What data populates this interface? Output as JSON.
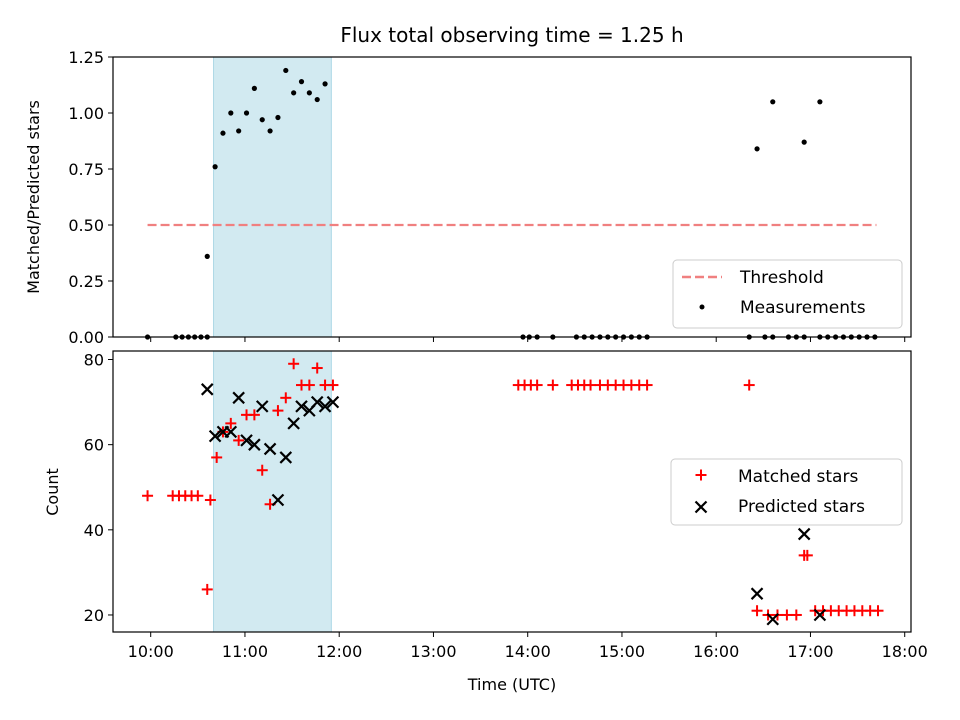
{
  "title": "Flux total observing time = 1.25 h",
  "colors": {
    "threshold": "#f08080",
    "measurement": "#000000",
    "matched": "#ff0000",
    "predicted": "#000000",
    "shade": "#add8e6"
  },
  "chart_data": [
    {
      "type": "scatter",
      "ylabel": "Matched/Predicted stars",
      "xlim": [
        "09:36",
        "18:04"
      ],
      "ylim": [
        0,
        1.25
      ],
      "yticks": [
        "0.00",
        "0.25",
        "0.50",
        "0.75",
        "1.00",
        "1.25"
      ],
      "shaded_interval": [
        "10:40",
        "11:55"
      ],
      "legend_position": "lower right",
      "threshold": {
        "name": "Threshold",
        "value": 0.5,
        "x_start": "09:58",
        "x_end": "17:42"
      },
      "series": [
        {
          "name": "Measurements",
          "x": [
            "09:58",
            "10:16",
            "10:20",
            "10:24",
            "10:28",
            "10:32",
            "10:36",
            "10:36",
            "10:41",
            "10:46",
            "10:51",
            "10:56",
            "11:01",
            "11:06",
            "11:11",
            "11:16",
            "11:21",
            "11:26",
            "11:31",
            "11:36",
            "11:41",
            "11:46",
            "11:51",
            "13:57",
            "14:01",
            "14:06",
            "14:16",
            "14:31",
            "14:36",
            "14:41",
            "14:46",
            "14:51",
            "14:56",
            "15:01",
            "15:06",
            "15:11",
            "15:16",
            "16:21",
            "16:31",
            "16:36",
            "16:46",
            "16:51",
            "16:56",
            "17:06",
            "17:11",
            "17:16",
            "17:21",
            "17:26",
            "17:31",
            "17:36",
            "17:41",
            "16:26",
            "16:36",
            "16:56",
            "17:06"
          ],
          "y": [
            0,
            0,
            0,
            0,
            0,
            0,
            0,
            0.36,
            0.76,
            0.91,
            1.0,
            0.92,
            1.0,
            1.11,
            0.97,
            0.92,
            0.98,
            1.19,
            1.09,
            1.14,
            1.09,
            1.06,
            1.13,
            0,
            0,
            0,
            0,
            0,
            0,
            0,
            0,
            0,
            0,
            0,
            0,
            0,
            0,
            0,
            0,
            0,
            0,
            0,
            0,
            0,
            0,
            0,
            0,
            0,
            0,
            0,
            0,
            0.84,
            1.05,
            0.87,
            1.05
          ]
        }
      ]
    },
    {
      "type": "scatter",
      "xlabel": "Time (UTC)",
      "ylabel": "Count",
      "xlim": [
        "09:36",
        "18:04"
      ],
      "ylim": [
        16,
        82
      ],
      "yticks": [
        "20",
        "40",
        "60",
        "80"
      ],
      "xticks": [
        "10:00",
        "11:00",
        "12:00",
        "13:00",
        "14:00",
        "15:00",
        "16:00",
        "17:00",
        "18:00"
      ],
      "shaded_interval": [
        "10:40",
        "11:55"
      ],
      "legend_position": "center right",
      "series": [
        {
          "name": "Matched stars",
          "marker": "+",
          "x": [
            "09:58",
            "10:14",
            "10:18",
            "10:22",
            "10:26",
            "10:30",
            "10:36",
            "10:38",
            "10:42",
            "10:46",
            "10:51",
            "10:56",
            "11:01",
            "11:06",
            "11:11",
            "11:16",
            "11:21",
            "11:26",
            "11:31",
            "11:36",
            "11:41",
            "11:46",
            "11:51",
            "11:56",
            "13:54",
            "13:58",
            "14:02",
            "14:06",
            "14:16",
            "14:28",
            "14:32",
            "14:36",
            "14:40",
            "14:46",
            "14:51",
            "14:56",
            "15:01",
            "15:06",
            "15:11",
            "15:16",
            "16:21",
            "16:26",
            "16:33",
            "16:39",
            "16:45",
            "16:51",
            "16:56",
            "16:58",
            "17:03",
            "17:08",
            "17:13",
            "17:18",
            "17:23",
            "17:28",
            "17:33",
            "17:38",
            "17:43"
          ],
          "y": [
            48,
            48,
            48,
            48,
            48,
            48,
            26,
            47,
            57,
            63,
            65,
            61,
            67,
            67,
            54,
            46,
            68,
            71,
            79,
            74,
            74,
            78,
            74,
            74,
            74,
            74,
            74,
            74,
            74,
            74,
            74,
            74,
            74,
            74,
            74,
            74,
            74,
            74,
            74,
            74,
            74,
            21,
            20,
            20,
            20,
            20,
            34,
            34,
            21,
            21,
            21,
            21,
            21,
            21,
            21,
            21,
            21
          ]
        },
        {
          "name": "Predicted stars",
          "marker": "x",
          "x": [
            "10:36",
            "10:41",
            "10:46",
            "10:51",
            "10:56",
            "11:01",
            "11:06",
            "11:11",
            "11:16",
            "11:21",
            "11:26",
            "11:31",
            "11:36",
            "11:41",
            "11:46",
            "11:51",
            "11:56",
            "16:26",
            "16:36",
            "16:56",
            "17:06"
          ],
          "y": [
            73,
            62,
            63,
            63,
            71,
            61,
            60,
            69,
            59,
            47,
            57,
            65,
            69,
            68,
            70,
            69,
            70,
            25,
            19,
            39,
            20
          ]
        }
      ]
    }
  ]
}
